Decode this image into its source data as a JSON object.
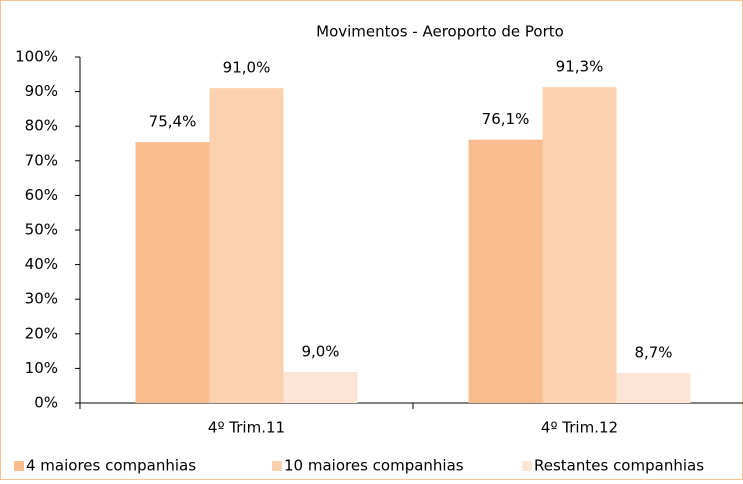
{
  "chart_data": {
    "type": "bar",
    "title": "Movimentos - Aeroporto de Porto",
    "categories": [
      "4º Trim.11",
      "4º Trim.12"
    ],
    "series": [
      {
        "name": "4 maiores companhias",
        "color": "#f9bc8f",
        "values": [
          75.4,
          76.1
        ],
        "value_labels": [
          "75,4%",
          "76,1%"
        ]
      },
      {
        "name": "10 maiores companhias",
        "color": "#fbd1b0",
        "values": [
          91.0,
          91.3
        ],
        "value_labels": [
          "91,0%",
          "91,3%"
        ]
      },
      {
        "name": "Restantes companhias",
        "color": "#fde5d6",
        "values": [
          9.0,
          8.7
        ],
        "value_labels": [
          "9,0%",
          "8,7%"
        ]
      }
    ],
    "ylim": [
      0,
      100
    ],
    "yticks": [
      {
        "value": 0,
        "label": "0%"
      },
      {
        "value": 10,
        "label": "10%"
      },
      {
        "value": 20,
        "label": "20%"
      },
      {
        "value": 30,
        "label": "30%"
      },
      {
        "value": 40,
        "label": "40%"
      },
      {
        "value": 50,
        "label": "50%"
      },
      {
        "value": 60,
        "label": "60%"
      },
      {
        "value": 70,
        "label": "70%"
      },
      {
        "value": 80,
        "label": "80%"
      },
      {
        "value": 90,
        "label": "90%"
      },
      {
        "value": 100,
        "label": "100%"
      }
    ],
    "legend": "bottom"
  }
}
